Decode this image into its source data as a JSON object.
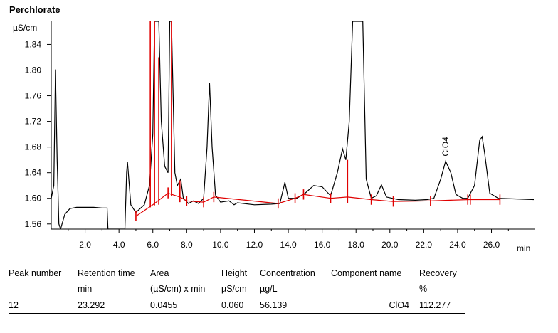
{
  "chart_data": {
    "type": "line",
    "title": "Perchlorate",
    "ylabel": "µS/cm",
    "xlabel": "min",
    "xlim": [
      0,
      28.5
    ],
    "ylim": [
      1.552,
      1.876
    ],
    "y_ticks": [
      1.56,
      1.6,
      1.64,
      1.68,
      1.72,
      1.76,
      1.8,
      1.84
    ],
    "y_tick_labels": [
      "1.56",
      "1.60",
      "1.64",
      "1.68",
      "1.72",
      "1.76",
      "1.80",
      "1.84"
    ],
    "x_ticks": [
      2,
      4,
      6,
      8,
      10,
      12,
      14,
      16,
      18,
      20,
      22,
      24,
      26
    ],
    "x_tick_labels": [
      "2.0",
      "4.0",
      "6.0",
      "8.0",
      "10.0",
      "12.0",
      "14.0",
      "16.0",
      "18.0",
      "20.0",
      "22.0",
      "24.0",
      "26.0"
    ],
    "series": [
      {
        "color": "#000000",
        "points": [
          [
            0.0,
            1.6
          ],
          [
            0.15,
            1.62
          ],
          [
            0.25,
            1.801
          ],
          [
            0.35,
            1.66
          ],
          [
            0.45,
            1.56
          ],
          [
            0.55,
            1.552
          ],
          [
            0.8,
            1.575
          ],
          [
            1.1,
            1.584
          ],
          [
            1.5,
            1.586
          ],
          [
            2.0,
            1.586
          ],
          [
            2.5,
            1.586
          ],
          [
            3.0,
            1.585
          ],
          [
            3.3,
            1.585
          ],
          [
            3.35,
            1.552
          ],
          [
            4.35,
            1.552
          ],
          [
            4.45,
            1.64
          ],
          [
            4.5,
            1.657
          ],
          [
            4.58,
            1.63
          ],
          [
            4.7,
            1.59
          ],
          [
            5.0,
            1.578
          ],
          [
            5.5,
            1.59
          ],
          [
            5.8,
            1.62
          ],
          [
            6.0,
            1.7
          ],
          [
            6.1,
            1.876
          ],
          [
            6.35,
            1.876
          ],
          [
            6.5,
            1.72
          ],
          [
            6.7,
            1.65
          ],
          [
            6.9,
            1.64
          ],
          [
            7.0,
            1.876
          ],
          [
            7.1,
            1.876
          ],
          [
            7.3,
            1.64
          ],
          [
            7.45,
            1.62
          ],
          [
            7.65,
            1.63
          ],
          [
            7.8,
            1.6
          ],
          [
            8.1,
            1.592
          ],
          [
            8.4,
            1.596
          ],
          [
            8.7,
            1.592
          ],
          [
            9.0,
            1.6
          ],
          [
            9.2,
            1.68
          ],
          [
            9.35,
            1.78
          ],
          [
            9.5,
            1.68
          ],
          [
            9.7,
            1.605
          ],
          [
            10.0,
            1.594
          ],
          [
            10.5,
            1.596
          ],
          [
            10.8,
            1.59
          ],
          [
            11.0,
            1.593
          ],
          [
            12.0,
            1.59
          ],
          [
            13.0,
            1.591
          ],
          [
            13.5,
            1.592
          ],
          [
            13.8,
            1.625
          ],
          [
            14.0,
            1.6
          ],
          [
            14.5,
            1.6
          ],
          [
            15.0,
            1.608
          ],
          [
            15.5,
            1.62
          ],
          [
            16.0,
            1.618
          ],
          [
            16.5,
            1.604
          ],
          [
            16.9,
            1.64
          ],
          [
            17.2,
            1.677
          ],
          [
            17.4,
            1.66
          ],
          [
            17.6,
            1.72
          ],
          [
            17.8,
            1.876
          ],
          [
            18.4,
            1.876
          ],
          [
            18.6,
            1.63
          ],
          [
            18.9,
            1.6
          ],
          [
            19.2,
            1.604
          ],
          [
            19.5,
            1.621
          ],
          [
            19.8,
            1.602
          ],
          [
            20.5,
            1.598
          ],
          [
            21.5,
            1.597
          ],
          [
            22.2,
            1.598
          ],
          [
            22.6,
            1.6
          ],
          [
            23.0,
            1.63
          ],
          [
            23.292,
            1.658
          ],
          [
            23.6,
            1.64
          ],
          [
            23.9,
            1.606
          ],
          [
            24.3,
            1.6
          ],
          [
            24.6,
            1.6
          ],
          [
            25.0,
            1.62
          ],
          [
            25.3,
            1.69
          ],
          [
            25.45,
            1.696
          ],
          [
            25.6,
            1.67
          ],
          [
            25.9,
            1.608
          ],
          [
            26.4,
            1.6
          ],
          [
            27.5,
            1.599
          ],
          [
            28.5,
            1.598
          ]
        ]
      }
    ],
    "baseline": {
      "color": "#e00000",
      "points": [
        [
          5.0,
          1.572
        ],
        [
          6.0,
          1.59
        ],
        [
          6.9,
          1.608
        ],
        [
          7.6,
          1.602
        ],
        [
          8.0,
          1.596
        ],
        [
          9.0,
          1.594
        ],
        [
          9.6,
          1.602
        ],
        [
          13.4,
          1.592
        ],
        [
          14.4,
          1.6
        ],
        [
          14.9,
          1.606
        ],
        [
          16.5,
          1.6
        ],
        [
          17.5,
          1.602
        ],
        [
          18.9,
          1.598
        ],
        [
          20.2,
          1.595
        ],
        [
          22.4,
          1.596
        ],
        [
          24.7,
          1.598
        ],
        [
          26.5,
          1.598
        ]
      ]
    },
    "peak_markers": [
      {
        "x": 5.0,
        "y_low": 1.565,
        "y_high": 1.581
      },
      {
        "x": 5.85,
        "y_low": 1.586,
        "y_high": 1.876
      },
      {
        "x": 6.1,
        "y_low": 1.589,
        "y_high": 1.876
      },
      {
        "x": 6.35,
        "y_low": 1.59,
        "y_high": 1.82
      },
      {
        "x": 6.9,
        "y_low": 1.6,
        "y_high": 1.617
      },
      {
        "x": 7.1,
        "y_low": 1.604,
        "y_high": 1.876
      },
      {
        "x": 7.6,
        "y_low": 1.594,
        "y_high": 1.628
      },
      {
        "x": 8.0,
        "y_low": 1.588,
        "y_high": 1.604
      },
      {
        "x": 9.0,
        "y_low": 1.586,
        "y_high": 1.602
      },
      {
        "x": 9.6,
        "y_low": 1.594,
        "y_high": 1.61
      },
      {
        "x": 13.4,
        "y_low": 1.584,
        "y_high": 1.6
      },
      {
        "x": 14.4,
        "y_low": 1.592,
        "y_high": 1.608
      },
      {
        "x": 14.9,
        "y_low": 1.598,
        "y_high": 1.614
      },
      {
        "x": 16.5,
        "y_low": 1.592,
        "y_high": 1.608
      },
      {
        "x": 17.5,
        "y_low": 1.592,
        "y_high": 1.66
      },
      {
        "x": 18.9,
        "y_low": 1.59,
        "y_high": 1.606
      },
      {
        "x": 20.2,
        "y_low": 1.587,
        "y_high": 1.603
      },
      {
        "x": 22.4,
        "y_low": 1.588,
        "y_high": 1.604
      },
      {
        "x": 24.6,
        "y_low": 1.59,
        "y_high": 1.606
      },
      {
        "x": 24.75,
        "y_low": 1.59,
        "y_high": 1.606
      },
      {
        "x": 26.5,
        "y_low": 1.59,
        "y_high": 1.606
      }
    ],
    "annotations": [
      {
        "text": "ClO4",
        "x": 23.292,
        "y": 1.659,
        "rotation": -90
      }
    ]
  },
  "table": {
    "headers": [
      "Peak number",
      "Retention time",
      "Area",
      "Height",
      "Concentration",
      "Component name",
      "Recovery"
    ],
    "units": [
      "",
      "min",
      "(µS/cm) x min",
      "µS/cm",
      "µg/L",
      "",
      "%"
    ],
    "rows": [
      [
        "12",
        "23.292",
        "0.0455",
        "0.060",
        "56.139",
        "ClO4",
        "112.277"
      ]
    ]
  }
}
